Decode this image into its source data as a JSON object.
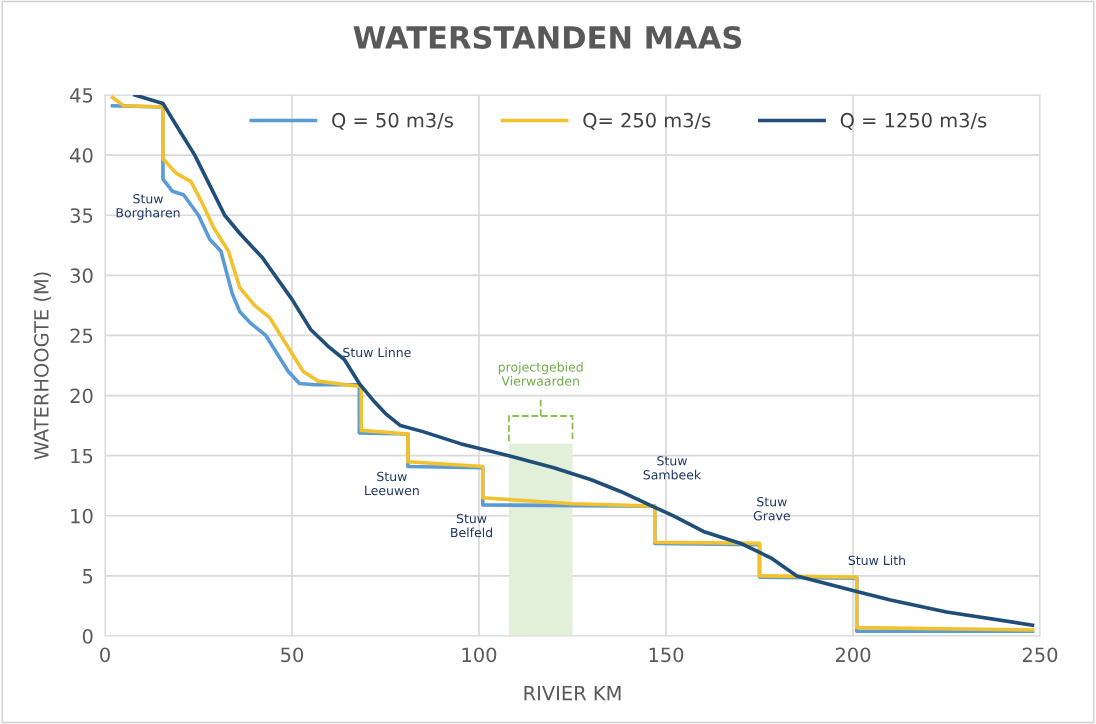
{
  "chart_data": {
    "type": "line",
    "title": "WATERSTANDEN MAAS",
    "xlabel": "RIVIER KM",
    "ylabel": "WATERHOOGTE (M)",
    "xlim": [
      0,
      250
    ],
    "xticks": [
      0,
      50,
      100,
      150,
      200,
      250
    ],
    "ylim": [
      0,
      45
    ],
    "yticks": [
      0,
      5,
      10,
      15,
      20,
      25,
      30,
      35,
      40,
      45
    ],
    "grid": true,
    "legend": "top",
    "line_style": "solid",
    "marker": "none",
    "series": [
      {
        "name": "Q = 50 m3/s",
        "color": "#5b9bd5",
        "x": [
          2,
          15.5,
          15.5,
          18,
          21,
          25,
          28,
          31,
          34,
          36,
          39,
          43,
          46,
          49,
          52,
          56,
          68,
          68,
          81,
          81,
          101,
          101,
          147,
          147,
          175,
          175,
          201,
          201,
          248
        ],
        "values": [
          44.1,
          44,
          38,
          37,
          36.7,
          35,
          33,
          32,
          28.5,
          27,
          26,
          25,
          23.5,
          22,
          21,
          20.9,
          20.9,
          16.9,
          16.8,
          14.1,
          14,
          10.9,
          10.8,
          7.7,
          7.6,
          4.9,
          4.8,
          0.4,
          0.4
        ]
      },
      {
        "name": "Q= 250 m3/s",
        "color": "#f2c12e",
        "x": [
          2,
          5,
          15.5,
          15.5,
          19,
          23,
          26,
          29,
          33,
          36,
          40,
          44,
          49,
          53,
          57,
          67,
          68.5,
          68.5,
          81,
          81,
          101,
          101,
          125,
          147,
          147,
          175,
          175,
          201,
          201,
          248
        ],
        "values": [
          44.8,
          44.1,
          44,
          39.7,
          38.5,
          37.8,
          36,
          34,
          32,
          29,
          27.5,
          26.5,
          24,
          22,
          21.2,
          20.8,
          20.8,
          17.1,
          16.8,
          14.5,
          14.1,
          11.5,
          11,
          10.8,
          7.8,
          7.7,
          5,
          4.9,
          0.7,
          0.5
        ]
      },
      {
        "name": "Q = 1250 m3/s",
        "color": "#1f4e79",
        "x": [
          8,
          15.5,
          19,
          24,
          28,
          32,
          36,
          42,
          50,
          55,
          60,
          64,
          68,
          72,
          75,
          79,
          85,
          95,
          108,
          120,
          130,
          138,
          147,
          152,
          160,
          170,
          178,
          185,
          201,
          210,
          225,
          248
        ],
        "values": [
          45,
          44.3,
          42.5,
          40,
          37.5,
          35,
          33.5,
          31.5,
          28,
          25.5,
          24,
          23,
          21,
          19.5,
          18.5,
          17.5,
          17,
          16,
          15,
          14,
          13,
          12,
          10.7,
          10,
          8.7,
          7.7,
          6.5,
          5,
          3.7,
          3,
          2,
          0.9
        ]
      }
    ],
    "bands": [
      {
        "axis": "x",
        "from": 108,
        "to": 125,
        "color": "#e2f0d9"
      }
    ],
    "annotations": [
      {
        "text": "Stuw\nBorgharen",
        "x": 15.5,
        "y": 38
      },
      {
        "text": "Stuw Linne",
        "x": 68,
        "y": 20.9
      },
      {
        "text": "Stuw\nLeeuwen",
        "x": 81,
        "y": 14.1
      },
      {
        "text": "Stuw\nBelfeld",
        "x": 101,
        "y": 10.9
      },
      {
        "text": "Stuw\nSambeek",
        "x": 147,
        "y": 10.8
      },
      {
        "text": "Stuw\nGrave",
        "x": 175,
        "y": 7.7
      },
      {
        "text": "Stuw Lith",
        "x": 201,
        "y": 4.9
      },
      "projectgebied\nVierwaarden"
    ]
  }
}
